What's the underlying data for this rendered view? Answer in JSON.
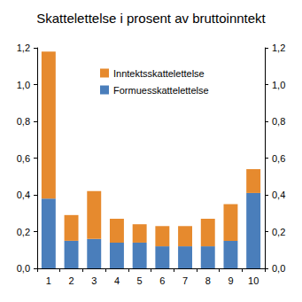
{
  "chart_data": {
    "type": "bar",
    "title": "Skattelettelse i prosent av bruttoinntekt",
    "categories": [
      "1",
      "2",
      "3",
      "4",
      "5",
      "6",
      "7",
      "8",
      "9",
      "10"
    ],
    "series": [
      {
        "name": "Formuesskattelettelse",
        "color": "#4a7ebb",
        "values": [
          0.38,
          0.15,
          0.16,
          0.14,
          0.14,
          0.12,
          0.12,
          0.12,
          0.15,
          0.41
        ]
      },
      {
        "name": "Inntektsskattelettelse",
        "color": "#e68a2e",
        "values": [
          0.8,
          0.14,
          0.26,
          0.13,
          0.1,
          0.11,
          0.11,
          0.15,
          0.2,
          0.13
        ]
      }
    ],
    "stacked": true,
    "grid": false,
    "legend": "top",
    "ylim": [
      0,
      1.2
    ],
    "yticks": [
      {
        "value": 0,
        "label": "0,0"
      },
      {
        "value": 0.2,
        "label": "0,2"
      },
      {
        "value": 0.4,
        "label": "0,4"
      },
      {
        "value": 0.6,
        "label": "0,6"
      },
      {
        "value": 0.8,
        "label": "0,8"
      },
      {
        "value": 1.0,
        "label": "1,0"
      },
      {
        "value": 1.2,
        "label": "1,2"
      }
    ],
    "y2lim": [
      0,
      1.2
    ],
    "y2ticks": [
      {
        "value": 0,
        "label": "0,0"
      },
      {
        "value": 0.2,
        "label": "0,2"
      },
      {
        "value": 0.4,
        "label": "0,4"
      },
      {
        "value": 0.6,
        "label": "0,6"
      },
      {
        "value": 0.8,
        "label": "0,8"
      },
      {
        "value": 1.0,
        "label": "1,0"
      },
      {
        "value": 1.2,
        "label": "1,2"
      }
    ]
  }
}
